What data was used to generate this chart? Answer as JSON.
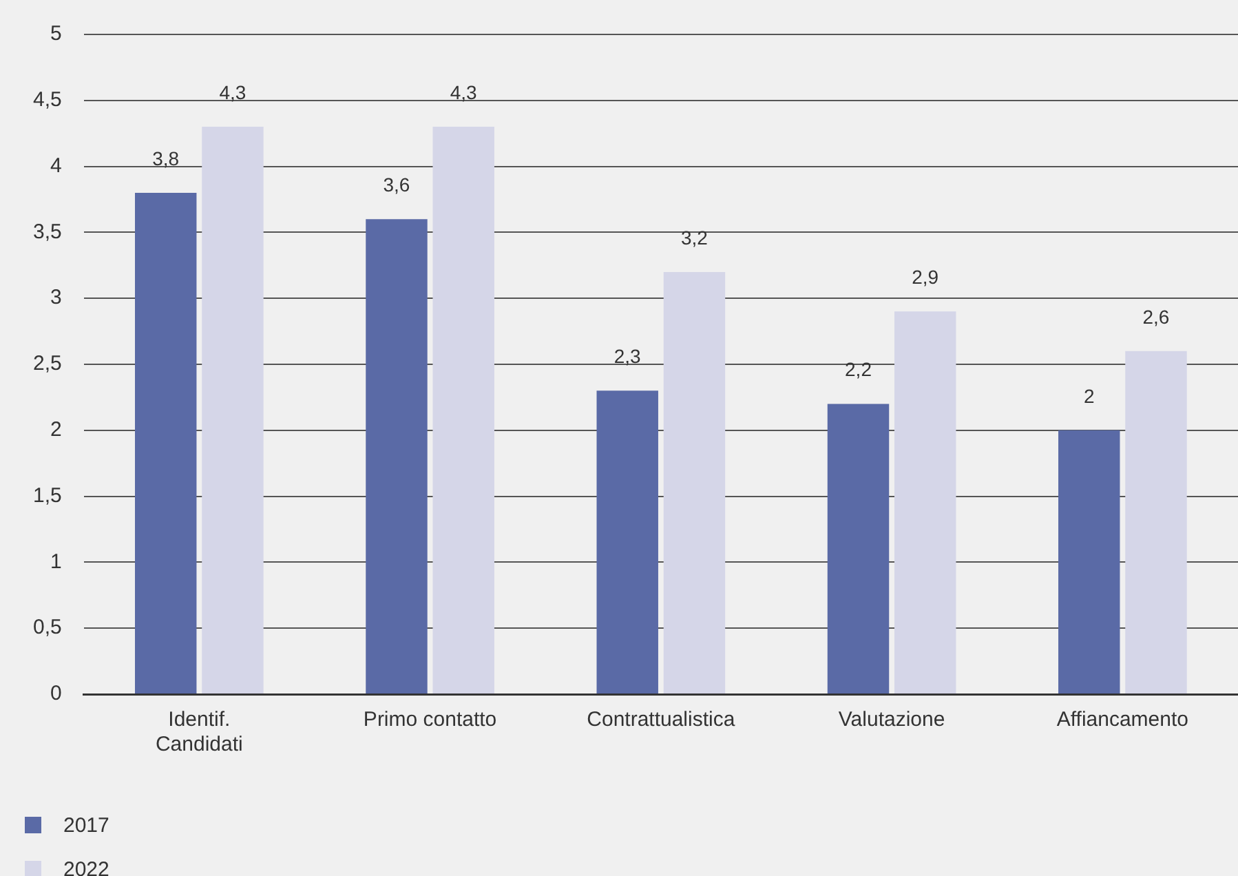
{
  "chart_data": {
    "type": "bar",
    "categories": [
      "Identif.\nCandidati",
      "Primo contatto",
      "Contrattualistica",
      "Valutazione",
      "Affiancamento"
    ],
    "series": [
      {
        "name": "2017",
        "color": "#5a6aa6",
        "values": [
          3.8,
          3.6,
          2.3,
          2.2,
          2
        ],
        "value_labels": [
          "3,8",
          "3,6",
          "2,3",
          "2,2",
          "2"
        ]
      },
      {
        "name": "2022",
        "color": "#d5d6e8",
        "values": [
          4.3,
          4.3,
          3.2,
          2.9,
          2.6
        ],
        "value_labels": [
          "4,3",
          "4,3",
          "3,2",
          "2,9",
          "2,6"
        ]
      }
    ],
    "ylim": [
      0,
      5
    ],
    "yticks": [
      0,
      {
        "value": 0.5,
        "label": "0,5"
      },
      1,
      {
        "value": 1.5,
        "label": "1,5"
      },
      2,
      {
        "value": 2.5,
        "label": "2,5"
      },
      3,
      {
        "value": 3.5,
        "label": "3,5"
      },
      4,
      {
        "value": 4.5,
        "label": "4,5"
      },
      5
    ],
    "grid": "y",
    "legend": "bottom left"
  }
}
